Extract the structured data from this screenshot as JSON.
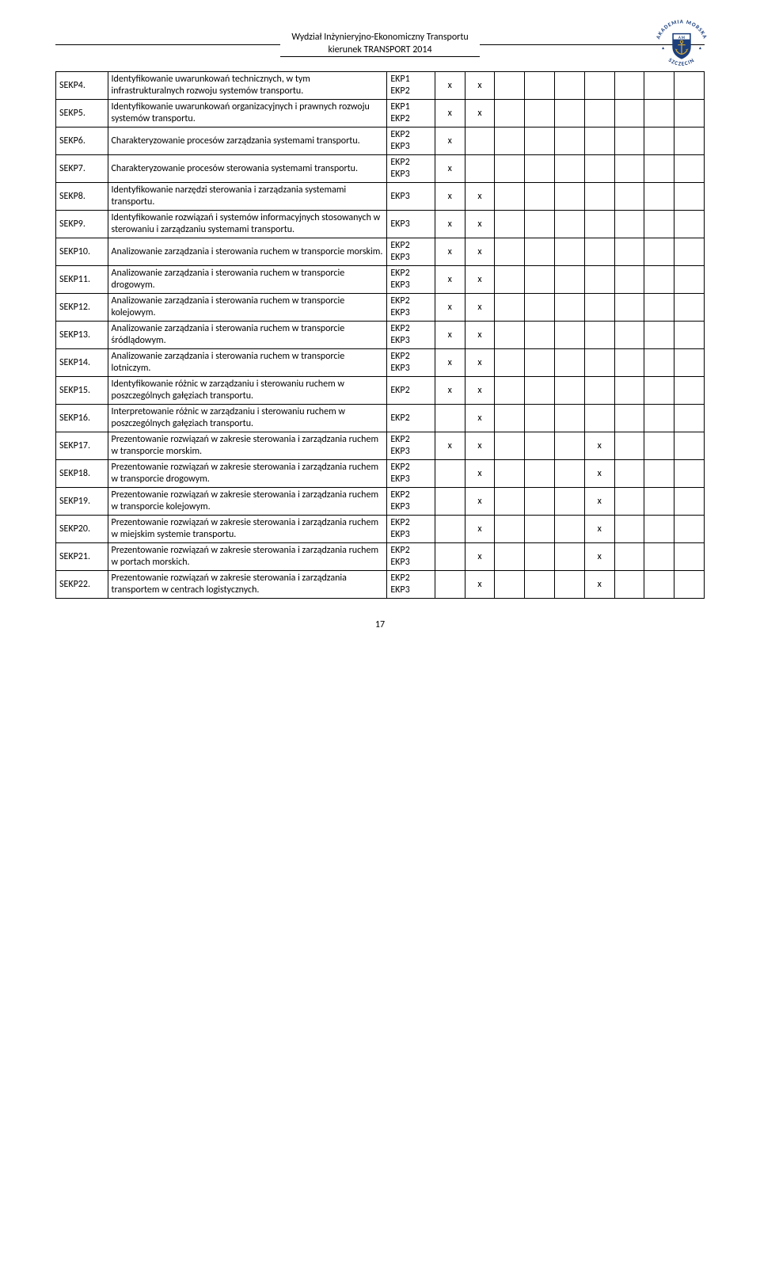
{
  "header": {
    "line1": "Wydział Inżynieryjno-Ekonomiczny Transportu",
    "line2": "kierunek TRANSPORT 2014"
  },
  "logo": {
    "topText": "AKADEMIA MORSKA",
    "bottomText": "SZCZECIN",
    "shieldColor": "#1c3f7c",
    "goldColor": "#d4a936",
    "textColor": "#1c3f7c"
  },
  "columns": {
    "markCount": 9
  },
  "rows": [
    {
      "id": "SEKP4.",
      "desc": "Identyfikowanie uwarunkowań technicznych, w tym infrastrukturalnych rozwoju systemów transportu.",
      "ekp": [
        "EKP1",
        "EKP2"
      ],
      "marks": [
        0,
        1
      ]
    },
    {
      "id": "SEKP5.",
      "desc": "Identyfikowanie uwarunkowań organizacyjnych i prawnych rozwoju systemów transportu.",
      "ekp": [
        "EKP1",
        "EKP2"
      ],
      "marks": [
        0,
        1
      ]
    },
    {
      "id": "SEKP6.",
      "desc": "Charakteryzowanie procesów zarządzania systemami transportu.",
      "ekp": [
        "EKP2",
        "EKP3"
      ],
      "marks": [
        0
      ]
    },
    {
      "id": "SEKP7.",
      "desc": "Charakteryzowanie procesów sterowania systemami transportu.",
      "ekp": [
        "EKP2",
        "EKP3"
      ],
      "marks": [
        0
      ]
    },
    {
      "id": "SEKP8.",
      "desc": "Identyfikowanie narzędzi sterowania i zarządzania systemami transportu.",
      "ekp": [
        "EKP3"
      ],
      "marks": [
        0,
        1
      ]
    },
    {
      "id": "SEKP9.",
      "desc": "Identyfikowanie rozwiązań i systemów informacyjnych stosowanych w sterowaniu i zarządzaniu systemami transportu.",
      "ekp": [
        "EKP3"
      ],
      "marks": [
        0,
        1
      ]
    },
    {
      "id": "SEKP10.",
      "desc": "Analizowanie zarządzania i sterowania ruchem w transporcie morskim.",
      "ekp": [
        "EKP2",
        "EKP3"
      ],
      "marks": [
        0,
        1
      ]
    },
    {
      "id": "SEKP11.",
      "desc": "Analizowanie zarządzania i sterowania ruchem w transporcie drogowym.",
      "ekp": [
        "EKP2",
        "EKP3"
      ],
      "marks": [
        0,
        1
      ]
    },
    {
      "id": "SEKP12.",
      "desc": "Analizowanie zarządzania i sterowania ruchem w transporcie kolejowym.",
      "ekp": [
        "EKP2",
        "EKP3"
      ],
      "marks": [
        0,
        1
      ]
    },
    {
      "id": "SEKP13.",
      "desc": "Analizowanie zarządzania i sterowania ruchem w transporcie śródlądowym.",
      "ekp": [
        "EKP2",
        "EKP3"
      ],
      "marks": [
        0,
        1
      ]
    },
    {
      "id": "SEKP14.",
      "desc": "Analizowanie zarządzania i sterowania ruchem w transporcie lotniczym.",
      "ekp": [
        "EKP2",
        "EKP3"
      ],
      "marks": [
        0,
        1
      ]
    },
    {
      "id": "SEKP15.",
      "desc": "Identyfikowanie różnic w zarządzaniu i sterowaniu ruchem w poszczególnych gałęziach transportu.",
      "ekp": [
        "EKP2"
      ],
      "marks": [
        0,
        1
      ]
    },
    {
      "id": "SEKP16.",
      "desc": "Interpretowanie różnic w zarządzaniu i sterowaniu ruchem w poszczególnych gałęziach transportu.",
      "ekp": [
        "EKP2"
      ],
      "marks": [
        1
      ]
    },
    {
      "id": "SEKP17.",
      "desc": "Prezentowanie rozwiązań w zakresie sterowania i zarządzania ruchem w transporcie morskim.",
      "ekp": [
        "EKP2",
        "EKP3"
      ],
      "marks": [
        0,
        1,
        5
      ]
    },
    {
      "id": "SEKP18.",
      "desc": "Prezentowanie rozwiązań w zakresie sterowania i zarządzania ruchem w transporcie drogowym.",
      "ekp": [
        "EKP2",
        "EKP3"
      ],
      "marks": [
        1,
        5
      ]
    },
    {
      "id": "SEKP19.",
      "desc": "Prezentowanie rozwiązań w zakresie sterowania i zarządzania ruchem w transporcie kolejowym.",
      "ekp": [
        "EKP2",
        "EKP3"
      ],
      "marks": [
        1,
        5
      ]
    },
    {
      "id": "SEKP20.",
      "desc": "Prezentowanie rozwiązań w zakresie sterowania i zarządzania ruchem w miejskim systemie transportu.",
      "ekp": [
        "EKP2",
        "EKP3"
      ],
      "marks": [
        1,
        5
      ]
    },
    {
      "id": "SEKP21.",
      "desc": "Prezentowanie rozwiązań w zakresie sterowania i zarządzania ruchem w portach morskich.",
      "ekp": [
        "EKP2",
        "EKP3"
      ],
      "marks": [
        1,
        5
      ]
    },
    {
      "id": "SEKP22.",
      "desc": "Prezentowanie rozwiązań w zakresie sterowania i zarządzania transportem w centrach logistycznych.",
      "ekp": [
        "EKP2",
        "EKP3"
      ],
      "marks": [
        1,
        5
      ]
    }
  ],
  "markGlyph": "x",
  "footer": {
    "pageNumber": "17"
  }
}
